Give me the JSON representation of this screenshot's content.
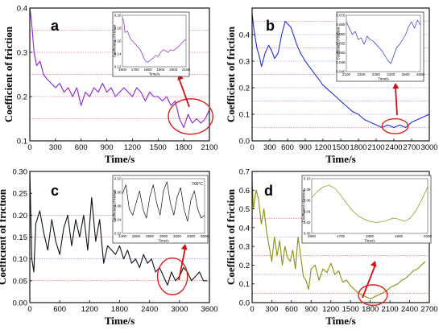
{
  "colors": {
    "a": "#8a22d6",
    "b": "#1f2fd8",
    "c": "#111111",
    "d": "#8a8f10",
    "highlight": "#e02020"
  },
  "chart_data": [
    {
      "id": "a",
      "type": "line",
      "letter": "a",
      "xlabel": "Time/s",
      "ylabel": "Coefficient of friction",
      "xlim": [
        0,
        2100
      ],
      "ylim": [
        0.1,
        0.4
      ],
      "xticks": [
        0,
        300,
        600,
        900,
        1200,
        1500,
        1800,
        2100
      ],
      "xtick_labels": [
        "0",
        "300",
        "600",
        "900",
        "1200",
        "1500",
        "1800",
        "2100"
      ],
      "yticks": [
        0.1,
        0.2,
        0.3,
        0.4
      ],
      "ytick_labels": [
        "0.1",
        "0.2",
        "0.3",
        "0.4"
      ],
      "ref_lines": [
        0.15,
        0.2,
        0.25,
        0.3,
        0.35
      ],
      "highlight_center": [
        1880,
        0.155
      ],
      "highlight_radius": [
        260,
        0.04
      ],
      "series": [
        {
          "x": [
            0,
            20,
            50,
            80,
            120,
            160,
            200,
            250,
            300,
            350,
            400,
            450,
            500,
            550,
            600,
            650,
            700,
            750,
            800,
            850,
            900,
            950,
            1000,
            1050,
            1100,
            1150,
            1200,
            1250,
            1300,
            1350,
            1400,
            1450,
            1500,
            1550,
            1600,
            1650,
            1700,
            1750,
            1800,
            1850,
            1900,
            1950,
            2000,
            2050,
            2100
          ],
          "y": [
            0.4,
            0.37,
            0.3,
            0.27,
            0.28,
            0.25,
            0.24,
            0.23,
            0.22,
            0.23,
            0.21,
            0.22,
            0.2,
            0.22,
            0.18,
            0.21,
            0.2,
            0.22,
            0.21,
            0.23,
            0.21,
            0.22,
            0.2,
            0.21,
            0.22,
            0.21,
            0.2,
            0.22,
            0.21,
            0.19,
            0.21,
            0.2,
            0.2,
            0.19,
            0.2,
            0.18,
            0.19,
            0.15,
            0.13,
            0.16,
            0.14,
            0.15,
            0.14,
            0.15,
            0.17
          ]
        }
      ],
      "inset": {
        "xlabel": "Time/s",
        "ylabel": "Coefficient of friction",
        "xlim": [
          1600,
          2100
        ],
        "ylim": [
          0.12,
          0.21
        ],
        "xtick_labels": [
          "1600",
          "1700",
          "1800",
          "1900",
          "2000",
          "2100"
        ],
        "ytick_labels": [
          "0.12",
          "0.14",
          "0.16",
          "0.18",
          "0.20"
        ],
        "series": [
          {
            "x": [
              1600,
              1610,
              1620,
              1640,
              1660,
              1680,
              1700,
              1720,
              1740,
              1760,
              1780,
              1800,
              1820,
              1840,
              1860,
              1880,
              1900,
              1920,
              1940,
              1960,
              1980,
              2000,
              2020,
              2040,
              2060,
              2080,
              2100
            ],
            "y": [
              0.205,
              0.2,
              0.18,
              0.182,
              0.17,
              0.165,
              0.16,
              0.155,
              0.15,
              0.14,
              0.13,
              0.128,
              0.132,
              0.135,
              0.14,
              0.138,
              0.145,
              0.15,
              0.148,
              0.145,
              0.15,
              0.148,
              0.152,
              0.155,
              0.16,
              0.165,
              0.168
            ]
          }
        ]
      }
    },
    {
      "id": "b",
      "type": "line",
      "letter": "b",
      "xlabel": "Time/s",
      "ylabel": "Coefficient of friction",
      "xlim": [
        0,
        3000
      ],
      "ylim": [
        0.0,
        0.5
      ],
      "xticks": [
        0,
        300,
        600,
        900,
        1200,
        1500,
        1800,
        2100,
        2400,
        2700,
        3000
      ],
      "xtick_labels": [
        "0",
        "300",
        "600",
        "900",
        "1200",
        "1500",
        "1800",
        "2100",
        "2400",
        "2700",
        "3000"
      ],
      "yticks": [
        0.0,
        0.1,
        0.2,
        0.3,
        0.4
      ],
      "ytick_labels": [
        "0.0",
        "0.1",
        "0.2",
        "0.3",
        "0.4"
      ],
      "ref_lines": [
        0.05,
        0.1,
        0.15,
        0.2,
        0.25,
        0.3,
        0.35,
        0.4,
        0.45
      ],
      "highlight_center": [
        2420,
        0.055
      ],
      "highlight_radius": [
        220,
        0.028
      ],
      "series": [
        {
          "x": [
            0,
            30,
            80,
            120,
            160,
            220,
            280,
            330,
            380,
            440,
            500,
            560,
            600,
            650,
            700,
            760,
            820,
            900,
            1000,
            1100,
            1200,
            1300,
            1400,
            1500,
            1600,
            1700,
            1800,
            1900,
            2000,
            2100,
            2200,
            2300,
            2400,
            2500,
            2600,
            2700,
            2800,
            2900,
            3000
          ],
          "y": [
            0.48,
            0.42,
            0.35,
            0.32,
            0.28,
            0.33,
            0.36,
            0.34,
            0.31,
            0.33,
            0.4,
            0.45,
            0.44,
            0.43,
            0.4,
            0.36,
            0.33,
            0.3,
            0.27,
            0.24,
            0.21,
            0.19,
            0.17,
            0.15,
            0.13,
            0.11,
            0.1,
            0.08,
            0.07,
            0.06,
            0.05,
            0.06,
            0.05,
            0.06,
            0.05,
            0.07,
            0.08,
            0.09,
            0.1
          ]
        }
      ],
      "inset": {
        "xlabel": "Time/s",
        "ylabel": "Coefficient of friction",
        "xlim": [
          2100,
          2600
        ],
        "ylim": [
          0.035,
          0.07
        ],
        "xtick_labels": [
          "2100",
          "2200",
          "2300",
          "2400",
          "2500",
          "2600"
        ],
        "ytick_labels": [
          "0.040",
          "0.045",
          "0.050",
          "0.055",
          "0.060",
          "0.065",
          "0.070"
        ],
        "series": [
          {
            "x": [
              2100,
              2120,
              2140,
              2160,
              2180,
              2200,
              2220,
              2240,
              2260,
              2280,
              2300,
              2320,
              2340,
              2360,
              2380,
              2400,
              2420,
              2440,
              2460,
              2480,
              2500,
              2520,
              2540,
              2560,
              2580,
              2600
            ],
            "y": [
              0.066,
              0.062,
              0.058,
              0.06,
              0.055,
              0.056,
              0.052,
              0.057,
              0.055,
              0.054,
              0.052,
              0.05,
              0.048,
              0.045,
              0.042,
              0.04,
              0.045,
              0.05,
              0.052,
              0.055,
              0.058,
              0.063,
              0.066,
              0.062,
              0.067,
              0.064
            ]
          }
        ]
      }
    },
    {
      "id": "c",
      "type": "line",
      "letter": "c",
      "xlabel": "Time/s",
      "ylabel": "Coefficient of friction",
      "xlim": [
        0,
        3600
      ],
      "ylim": [
        0.0,
        0.3
      ],
      "xticks": [
        0,
        600,
        1200,
        1800,
        2400,
        3000,
        3600
      ],
      "xtick_labels": [
        "0",
        "600",
        "1200",
        "1800",
        "2400",
        "3000",
        "3600"
      ],
      "yticks": [
        0.0,
        0.05,
        0.1,
        0.15,
        0.2,
        0.25,
        0.3
      ],
      "ytick_labels": [
        "0.00",
        "0.05",
        "0.10",
        "0.15",
        "0.20",
        "0.25",
        "0.30"
      ],
      "ref_lines": [
        0.05,
        0.1,
        0.15,
        0.2
      ],
      "highlight_center": [
        2860,
        0.06
      ],
      "highlight_radius": [
        300,
        0.042
      ],
      "series": [
        {
          "x": [
            0,
            40,
            80,
            120,
            200,
            280,
            360,
            440,
            520,
            600,
            680,
            760,
            840,
            920,
            1000,
            1080,
            1160,
            1240,
            1320,
            1400,
            1480,
            1560,
            1640,
            1720,
            1800,
            1880,
            1960,
            2040,
            2120,
            2200,
            2280,
            2360,
            2440,
            2520,
            2600,
            2680,
            2760,
            2840,
            2920,
            3000,
            3080,
            3160,
            3240,
            3320,
            3400,
            3480,
            3560
          ],
          "y": [
            0.3,
            0.1,
            0.07,
            0.18,
            0.21,
            0.16,
            0.12,
            0.19,
            0.14,
            0.11,
            0.17,
            0.2,
            0.13,
            0.19,
            0.15,
            0.2,
            0.12,
            0.24,
            0.14,
            0.19,
            0.09,
            0.13,
            0.12,
            0.11,
            0.13,
            0.1,
            0.12,
            0.09,
            0.1,
            0.08,
            0.11,
            0.09,
            0.1,
            0.07,
            0.08,
            0.06,
            0.04,
            0.07,
            0.05,
            0.06,
            0.08,
            0.07,
            0.05,
            0.06,
            0.07,
            0.05,
            0.05
          ]
        }
      ],
      "inset": {
        "xlabel": "Time/s",
        "ylabel": "Coefficient of friction",
        "note": "700°C",
        "xlim": [
          2400,
          3600
        ],
        "ylim": [
          0.02,
          0.11
        ],
        "xtick_labels": [
          "2400",
          "2600",
          "2800",
          "3000",
          "3200",
          "3400",
          "3600"
        ],
        "ytick_labels": [
          "0.02",
          "0.04",
          "0.06",
          "0.08",
          "0.10"
        ],
        "series": [
          {
            "x": [
              2400,
              2450,
              2500,
              2550,
              2600,
              2650,
              2700,
              2750,
              2800,
              2850,
              2900,
              2950,
              3000,
              3050,
              3100,
              3150,
              3200,
              3250,
              3300,
              3350,
              3400,
              3450,
              3500,
              3550,
              3600
            ],
            "y": [
              0.085,
              0.1,
              0.06,
              0.05,
              0.07,
              0.09,
              0.06,
              0.045,
              0.08,
              0.1,
              0.07,
              0.05,
              0.09,
              0.105,
              0.07,
              0.05,
              0.08,
              0.095,
              0.06,
              0.04,
              0.075,
              0.09,
              0.06,
              0.045,
              0.05
            ]
          }
        ]
      }
    },
    {
      "id": "d",
      "type": "line",
      "letter": "d",
      "xlabel": "Time/s",
      "ylabel": "Coefficient of friction",
      "xlim": [
        0,
        2700
      ],
      "ylim": [
        0.0,
        0.7
      ],
      "xticks": [
        0,
        300,
        600,
        900,
        1200,
        1500,
        1800,
        2100,
        2400,
        2700
      ],
      "xtick_labels": [
        "0",
        "300",
        "600",
        "900",
        "1200",
        "1500",
        "1800",
        "2100",
        "2400",
        "2700"
      ],
      "yticks": [
        0.0,
        0.1,
        0.2,
        0.3,
        0.4,
        0.5,
        0.6,
        0.7
      ],
      "ytick_labels": [
        "0.0",
        "0.1",
        "0.2",
        "0.3",
        "0.4",
        "0.5",
        "0.6",
        "0.7"
      ],
      "ref_lines": [
        0.05,
        0.15,
        0.25,
        0.35,
        0.45
      ],
      "highlight_center": [
        1840,
        0.04
      ],
      "highlight_radius": [
        220,
        0.055
      ],
      "series": [
        {
          "x": [
            0,
            20,
            60,
            100,
            140,
            180,
            220,
            260,
            300,
            340,
            380,
            420,
            460,
            500,
            540,
            580,
            620,
            660,
            700,
            740,
            780,
            820,
            860,
            900,
            960,
            1020,
            1080,
            1140,
            1200,
            1260,
            1320,
            1380,
            1440,
            1500,
            1560,
            1620,
            1680,
            1740,
            1800,
            1860,
            1920,
            1980,
            2040,
            2100,
            2160,
            2220,
            2280,
            2340,
            2400,
            2460,
            2520,
            2580,
            2640
          ],
          "y": [
            0.65,
            0.5,
            0.6,
            0.55,
            0.42,
            0.5,
            0.38,
            0.3,
            0.22,
            0.35,
            0.25,
            0.33,
            0.2,
            0.3,
            0.24,
            0.22,
            0.28,
            0.18,
            0.35,
            0.25,
            0.14,
            0.12,
            0.07,
            0.18,
            0.2,
            0.12,
            0.18,
            0.16,
            0.21,
            0.15,
            0.17,
            0.11,
            0.12,
            0.09,
            0.07,
            0.05,
            0.04,
            0.03,
            0.02,
            0.03,
            0.04,
            0.05,
            0.06,
            0.08,
            0.09,
            0.1,
            0.12,
            0.13,
            0.15,
            0.17,
            0.18,
            0.2,
            0.22
          ]
        }
      ],
      "inset": {
        "xlabel": "Time/s",
        "ylabel": "Coefficient of friction",
        "xlim": [
          1600,
          2000
        ],
        "ylim": [
          0.0,
          0.1
        ],
        "xtick_labels": [
          "1600",
          "1700",
          "1800",
          "1900",
          "2000"
        ],
        "ytick_labels": [
          "0.00",
          "0.02",
          "0.04",
          "0.06",
          "0.08",
          "0.10"
        ],
        "series": [
          {
            "x": [
              1600,
              1620,
              1640,
              1660,
              1680,
              1700,
              1720,
              1740,
              1760,
              1780,
              1800,
              1820,
              1840,
              1860,
              1880,
              1900,
              1920,
              1940,
              1960,
              1980,
              2000
            ],
            "y": [
              0.065,
              0.077,
              0.085,
              0.088,
              0.082,
              0.07,
              0.055,
              0.042,
              0.032,
              0.026,
              0.022,
              0.02,
              0.021,
              0.024,
              0.028,
              0.026,
              0.022,
              0.028,
              0.042,
              0.062,
              0.085
            ]
          }
        ]
      }
    }
  ]
}
